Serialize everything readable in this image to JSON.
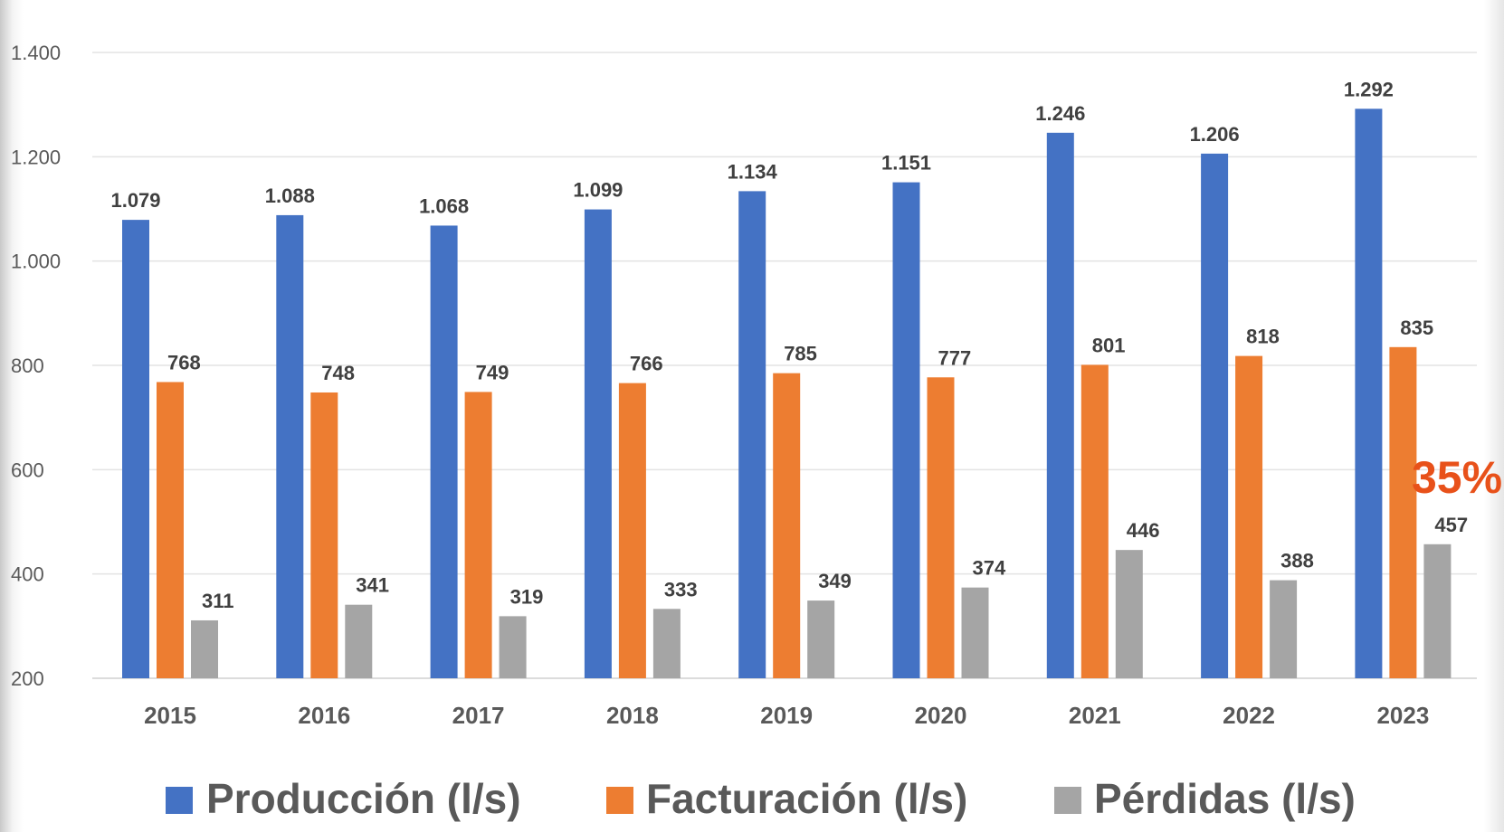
{
  "chart_data": {
    "type": "bar",
    "title": "",
    "xlabel": "",
    "ylabel": "",
    "categories": [
      "2015",
      "2016",
      "2017",
      "2018",
      "2019",
      "2020",
      "2021",
      "2022",
      "2023"
    ],
    "series": [
      {
        "name": "Producción (l/s)",
        "color": "#4472C4",
        "values": [
          1079,
          1088,
          1068,
          1099,
          1134,
          1151,
          1246,
          1206,
          1292
        ],
        "labels": [
          "1.079",
          "1.088",
          "1.068",
          "1.099",
          "1.134",
          "1.151",
          "1.246",
          "1.206",
          "1.292"
        ]
      },
      {
        "name": "Facturación (l/s)",
        "color": "#ED7D31",
        "values": [
          768,
          748,
          749,
          766,
          785,
          777,
          801,
          818,
          835
        ],
        "labels": [
          "768",
          "748",
          "749",
          "766",
          "785",
          "777",
          "801",
          "818",
          "835"
        ]
      },
      {
        "name": "Pérdidas (l/s)",
        "color": "#A5A5A5",
        "values": [
          311,
          341,
          319,
          333,
          349,
          374,
          446,
          388,
          457
        ],
        "labels": [
          "311",
          "341",
          "319",
          "333",
          "349",
          "374",
          "446",
          "388",
          "457"
        ]
      }
    ],
    "ylim": [
      200,
      1400
    ],
    "yticks": [
      200,
      400,
      600,
      800,
      1000,
      1200,
      1400
    ],
    "ytick_labels": [
      "200",
      "400",
      "600",
      "800",
      "1.000",
      "1.200",
      "1.400"
    ],
    "grid": true,
    "legend_position": "bottom",
    "annotations": [
      {
        "text": "35%",
        "color": "#E8511A"
      }
    ]
  }
}
